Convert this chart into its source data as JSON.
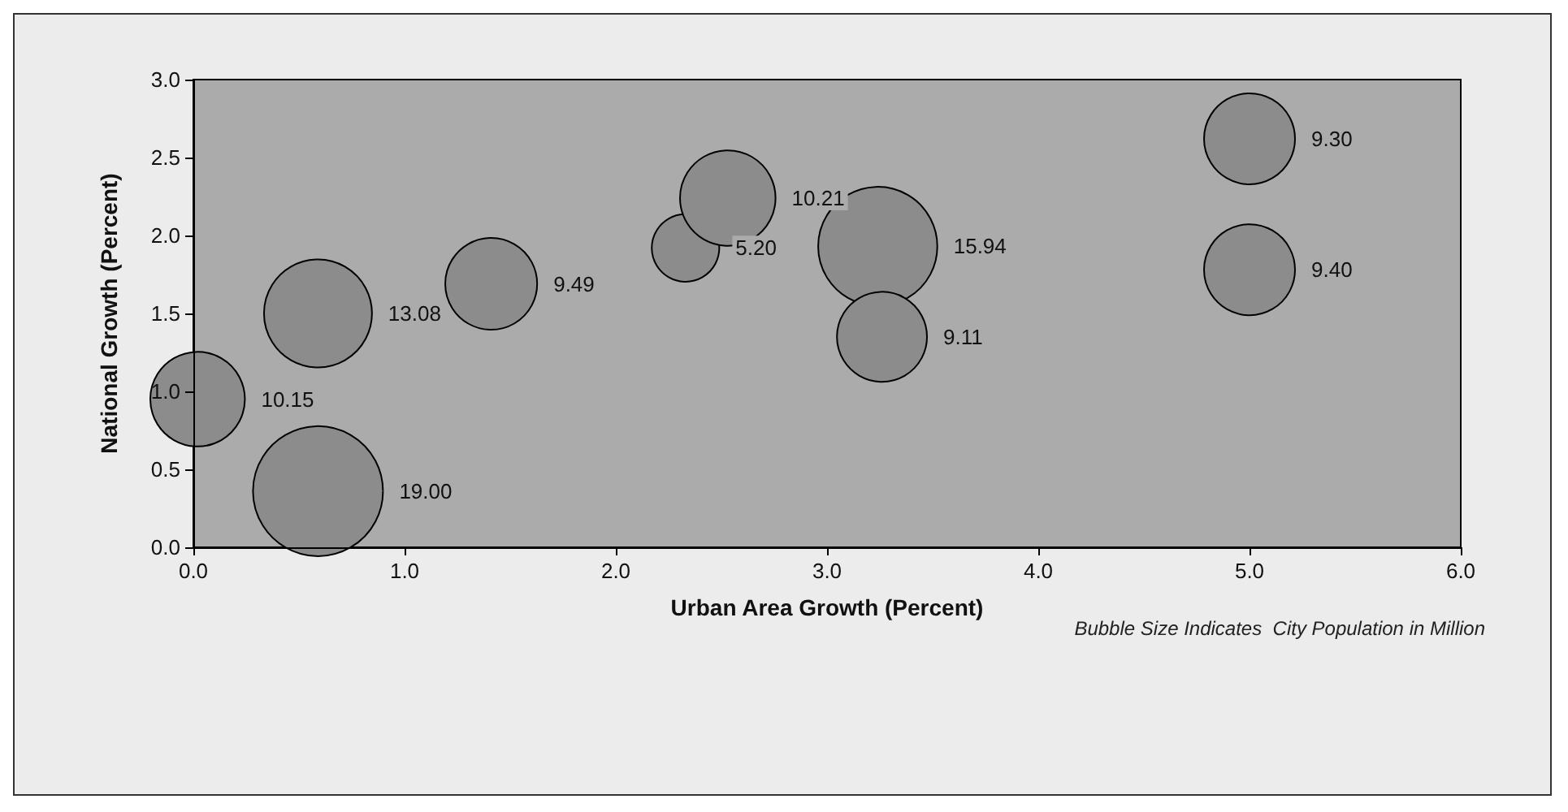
{
  "chart_data": {
    "type": "bubble",
    "xlabel": "Urban Area Growth (Percent)",
    "ylabel": "National Growth (Percent)",
    "annotations": [
      "Bubble Size Indicates  City Population in Million",
      "10.15",
      "19.00",
      "13.08",
      "9.49",
      "5.20",
      "10.21",
      "15.94",
      "9.11",
      "9.30",
      "9.40"
    ],
    "x": [
      0.02,
      0.59,
      0.59,
      1.41,
      2.33,
      2.53,
      3.24,
      3.26,
      5.0,
      5.0
    ],
    "series": [
      {
        "color": "#8c8c8c",
        "values": [
          0.95,
          0.36,
          1.5,
          1.69,
          1.92,
          2.24,
          1.93,
          1.35,
          2.62,
          1.78
        ],
        "sizes": [
          0.53,
          1,
          0.69,
          0.5,
          0.27,
          0.54,
          0.84,
          0.48,
          0.49,
          0.49
        ]
      }
    ],
    "xlim": [
      0,
      6
    ],
    "xticks": [
      {
        "value": 0,
        "label": "0.0"
      },
      {
        "value": 1,
        "label": "1.0"
      },
      {
        "value": 2,
        "label": "2.0"
      },
      {
        "value": 3,
        "label": "3.0"
      },
      {
        "value": 4,
        "label": "4.0"
      },
      {
        "value": 5,
        "label": "5.0"
      },
      {
        "value": 6,
        "label": "6.0"
      }
    ],
    "ylim": [
      0,
      3
    ],
    "yticks": [
      {
        "value": 0,
        "label": "0.0"
      },
      {
        "value": 0.5,
        "label": "0.5"
      },
      {
        "value": 1,
        "label": "1.0"
      },
      {
        "value": 1.5,
        "label": "1.5"
      },
      {
        "value": 2,
        "label": "2.0"
      },
      {
        "value": 2.5,
        "label": "2.5"
      },
      {
        "value": 3,
        "label": "3.0"
      }
    ],
    "grid": false
  }
}
